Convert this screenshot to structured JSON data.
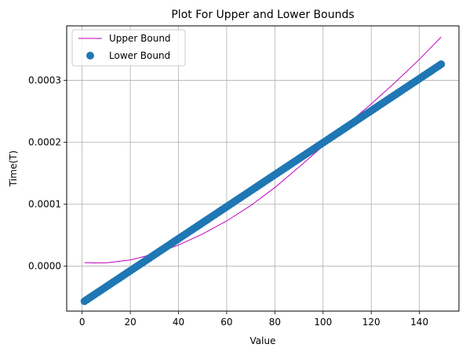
{
  "chart_data": {
    "type": "line",
    "title": "Plot For Upper and Lower Bounds",
    "xlabel": "Value",
    "ylabel": "Time(T)",
    "xlim": [
      -6.4,
      156.4
    ],
    "ylim": [
      -7.25e-05,
      0.000388
    ],
    "grid": true,
    "legend": {
      "placement": "top-left"
    },
    "x_ticks": [
      {
        "value": 0,
        "label": "0"
      },
      {
        "value": 20,
        "label": "20"
      },
      {
        "value": 40,
        "label": "40"
      },
      {
        "value": 60,
        "label": "60"
      },
      {
        "value": 80,
        "label": "80"
      },
      {
        "value": 100,
        "label": "100"
      },
      {
        "value": 120,
        "label": "120"
      },
      {
        "value": 140,
        "label": "140"
      }
    ],
    "y_ticks": [
      {
        "value": 0.0,
        "label": "0.0000"
      },
      {
        "value": 0.0001,
        "label": "0.0001"
      },
      {
        "value": 0.0002,
        "label": "0.0002"
      },
      {
        "value": 0.0003,
        "label": "0.0003"
      }
    ],
    "series": [
      {
        "name": "Upper Bound",
        "kind": "line",
        "color": "#bf00bf",
        "x": [
          1,
          5,
          10,
          20,
          30,
          40,
          50,
          60,
          70,
          80,
          90,
          100,
          110,
          120,
          130,
          140,
          149
        ],
        "y": [
          5.8e-06,
          5.3e-06,
          5.5e-06,
          1.01e-05,
          1.98e-05,
          3.42e-05,
          5.2e-05,
          7.3e-05,
          9.8e-05,
          0.000127,
          0.00016,
          0.000194,
          0.000229,
          0.000262,
          0.000297,
          0.000334,
          0.00037
        ]
      },
      {
        "name": "Lower Bound",
        "kind": "scatter",
        "color": "#1f77b4",
        "x_start": 1,
        "x_end": 149,
        "x_step": 1,
        "y_start": -5.65e-05,
        "y_end": 0.000326
      }
    ]
  }
}
